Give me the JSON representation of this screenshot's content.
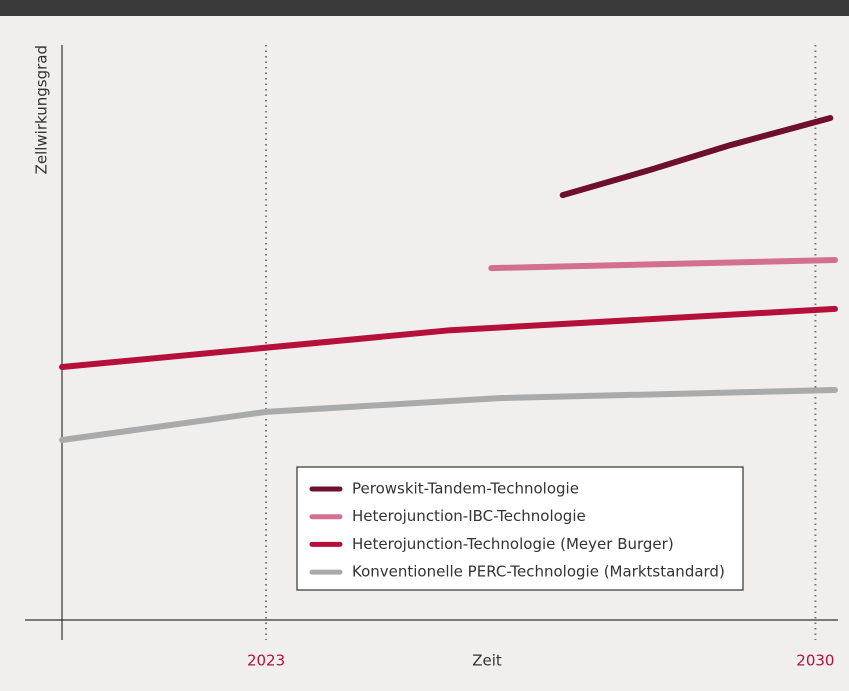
{
  "chart_data": {
    "type": "line",
    "ylabel": "Zellwirkungsgrad",
    "xlabel": "Zeit",
    "xlim": [
      2020.4,
      2030.25
    ],
    "ylim": [
      0,
      100
    ],
    "xticks": [
      2023,
      2030
    ],
    "grid": true,
    "legend": "bottom-right",
    "series": [
      {
        "name": "Perowskit-Tandem-Technologie",
        "color": "#6e0f2e",
        "x": [
          2026.78,
          2027.9,
          2028.92,
          2030.19
        ],
        "values": [
          73.9,
          78.3,
          82.6,
          87.3
        ]
      },
      {
        "name": "Heterojunction-IBC-Technologie",
        "color": "#d4708f",
        "x": [
          2025.87,
          2030.25
        ],
        "values": [
          61.2,
          62.6
        ]
      },
      {
        "name": "Heterojunction-Technologie (Meyer Burger)",
        "color": "#b5103a",
        "x": [
          2020.4,
          2025.35,
          2030.25
        ],
        "values": [
          44.0,
          50.4,
          54.1
        ]
      },
      {
        "name": "Konventionelle PERC-Technologie (Marktstandard)",
        "color": "#aaaaaa",
        "x": [
          2020.4,
          2023,
          2026,
          2030.25
        ],
        "values": [
          31.3,
          36.2,
          38.6,
          40.0
        ]
      }
    ]
  }
}
